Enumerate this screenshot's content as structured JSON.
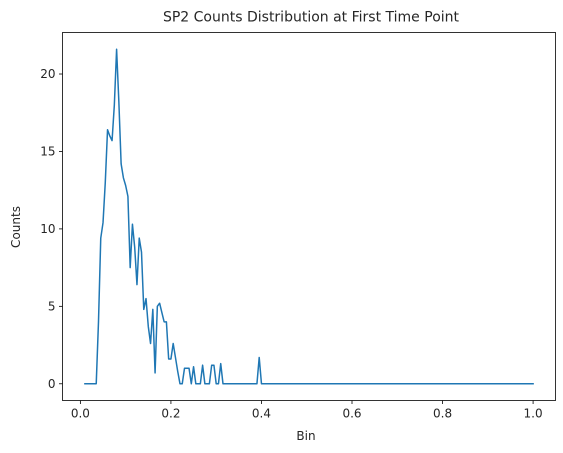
{
  "chart_data": {
    "type": "line",
    "title": "SP2 Counts Distribution at First Time Point",
    "xlabel": "Bin",
    "ylabel": "Counts",
    "xlim": [
      -0.0395,
      1.0495
    ],
    "ylim": [
      -1.08,
      22.68
    ],
    "xticks": [
      0.0,
      0.2,
      0.4,
      0.6,
      0.8,
      1.0
    ],
    "xtick_labels": [
      "0.0",
      "0.2",
      "0.4",
      "0.6",
      "0.8",
      "1.0"
    ],
    "yticks": [
      0,
      5,
      10,
      15,
      20
    ],
    "ytick_labels": [
      "0",
      "5",
      "10",
      "15",
      "20"
    ],
    "grid": false,
    "line_color": "#1f77b4",
    "series": [
      {
        "x": [
          0.01,
          0.02,
          0.03,
          0.035,
          0.04,
          0.045,
          0.05,
          0.055,
          0.06,
          0.065,
          0.07,
          0.075,
          0.08,
          0.085,
          0.09,
          0.095,
          0.1,
          0.105,
          0.11,
          0.115,
          0.12,
          0.125,
          0.13,
          0.135,
          0.14,
          0.145,
          0.15,
          0.155,
          0.16,
          0.165,
          0.17,
          0.175,
          0.18,
          0.185,
          0.19,
          0.195,
          0.2,
          0.205,
          0.21,
          0.215,
          0.22,
          0.225,
          0.23,
          0.235,
          0.24,
          0.245,
          0.25,
          0.255,
          0.26,
          0.265,
          0.27,
          0.275,
          0.28,
          0.285,
          0.29,
          0.295,
          0.3,
          0.305,
          0.31,
          0.315,
          0.32,
          0.39,
          0.395,
          0.4,
          0.41,
          1.0
        ],
        "y": [
          0,
          0,
          0,
          0,
          4,
          9.4,
          10.4,
          13,
          16.4,
          16,
          15.7,
          18,
          21.6,
          18.2,
          14.2,
          13.3,
          12.8,
          12.1,
          7.5,
          10.3,
          8.8,
          6.4,
          9.4,
          8.5,
          4.8,
          5.5,
          3.7,
          2.6,
          4.8,
          0.7,
          5,
          5.2,
          4.6,
          4,
          4,
          1.6,
          1.6,
          2.6,
          1.7,
          0.8,
          0,
          0,
          1,
          1,
          1,
          0,
          1.1,
          0,
          0,
          0,
          1.2,
          0,
          0,
          0,
          1.2,
          1.2,
          0,
          0,
          1.3,
          0,
          0,
          0,
          1.7,
          0,
          0,
          0
        ]
      }
    ]
  }
}
